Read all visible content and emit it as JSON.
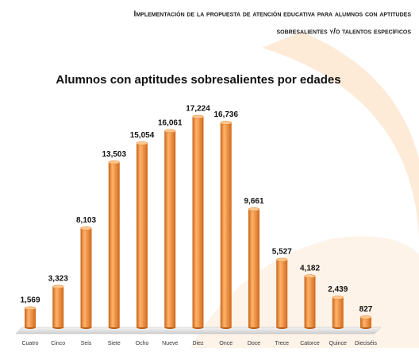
{
  "header": {
    "lines": [
      "Implementación de la propuesta de atención educativa para alumnos con aptitudes",
      "sobresalientes y/o talentos específicos"
    ]
  },
  "chart_data": {
    "type": "bar",
    "title": "Alumnos con aptitudes sobresalientes por edades",
    "categories": [
      "Cuatro",
      "Cinco",
      "Seis",
      "Siete",
      "Ocho",
      "Nueve",
      "Diez",
      "Once",
      "Doce",
      "Trece",
      "Catorce",
      "Quince",
      "Dieciséis"
    ],
    "values": [
      1569,
      3323,
      8103,
      13503,
      15054,
      16061,
      17224,
      16736,
      9661,
      5527,
      4182,
      2439,
      827
    ],
    "value_labels": [
      "1,569",
      "3,323",
      "8,103",
      "13,503",
      "15,054",
      "16,061",
      "17,224",
      "16,736",
      "9,661",
      "5,527",
      "4,182",
      "2,439",
      "827"
    ],
    "color": "#f0892a"
  }
}
